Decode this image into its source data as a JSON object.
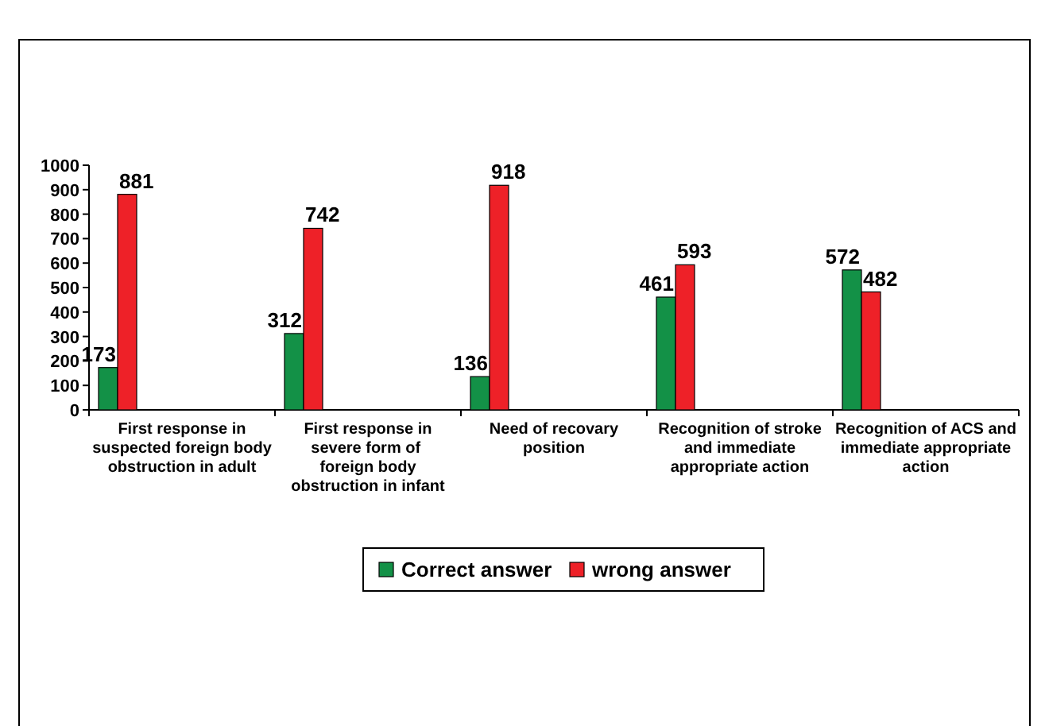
{
  "chart_data": {
    "type": "bar",
    "categories": [
      "First response in suspected foreign body obstruction in adult",
      "First response in severe form of  foreign body obstruction in infant",
      "Need of recovary position",
      "Recognition of stroke and immediate appropriate action",
      "Recognition of ACS and immediate appropriate action"
    ],
    "series": [
      {
        "name": "Correct answer",
        "color": "#139147",
        "values": [
          173,
          312,
          136,
          461,
          572
        ]
      },
      {
        "name": "wrong answer",
        "color": "#ee2128",
        "values": [
          881,
          742,
          918,
          593,
          482
        ]
      }
    ],
    "ylim": [
      0,
      1000
    ],
    "yticks": [
      0,
      100,
      200,
      300,
      400,
      500,
      600,
      700,
      800,
      900,
      1000
    ],
    "data_labels": true,
    "grid": false,
    "legend": "bottom"
  }
}
